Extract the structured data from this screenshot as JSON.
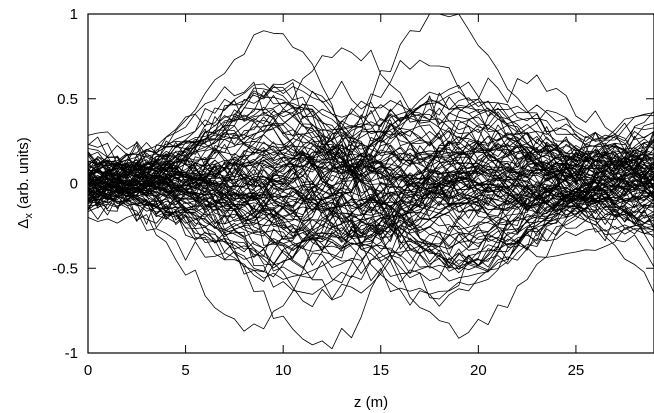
{
  "chart_data": {
    "type": "line",
    "title": "",
    "xlabel": "z (m)",
    "ylabel": {
      "symbol": "Δ",
      "subscript": "x",
      "rest": " (arb. units)"
    },
    "xlim": [
      0,
      29
    ],
    "ylim": [
      -1,
      1
    ],
    "xticks": [
      "0",
      "5",
      "10",
      "15",
      "20",
      "25"
    ],
    "yticks": [
      "-1",
      "-0.5",
      "0",
      "0.5",
      "1"
    ],
    "grid": false,
    "legend": "none",
    "line_color": "#000000",
    "series_generation": {
      "count": 110,
      "sample_step_m": 0.5,
      "note_visible_pattern": "many overlapping trajectories crossing near z≈7.5 and z≈19.5, peak spread about ±0.85 near z≈14, spread about ±0.45 toward z=29"
    }
  }
}
